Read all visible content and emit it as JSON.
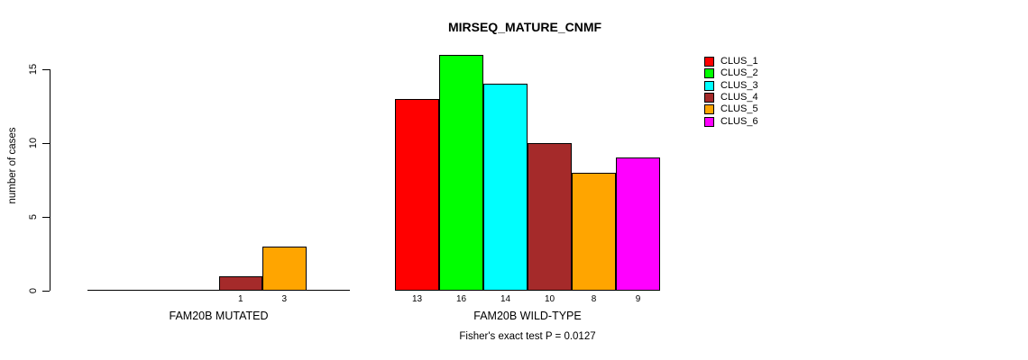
{
  "chart_data": {
    "type": "bar",
    "title": "MIRSEQ_MATURE_CNMF",
    "ylabel": "number of cases",
    "xlabel": "",
    "footer": "Fisher's exact test P = 0.0127",
    "yticks": [
      0,
      5,
      10,
      15
    ],
    "ylim": [
      0,
      16
    ],
    "grid": false,
    "legend_position": "right",
    "legend": [
      "CLUS_1",
      "CLUS_2",
      "CLUS_3",
      "CLUS_4",
      "CLUS_5",
      "CLUS_6"
    ],
    "colors": [
      "#FF0000",
      "#00FF00",
      "#00FFFF",
      "#A52A2A",
      "#FFA500",
      "#FF00FF"
    ],
    "categories": [
      "FAM20B MUTATED",
      "FAM20B WILD-TYPE"
    ],
    "series": [
      {
        "name": "CLUS_1",
        "values": [
          0,
          13
        ]
      },
      {
        "name": "CLUS_2",
        "values": [
          0,
          16
        ]
      },
      {
        "name": "CLUS_3",
        "values": [
          0,
          14
        ]
      },
      {
        "name": "CLUS_4",
        "values": [
          1,
          10
        ]
      },
      {
        "name": "CLUS_5",
        "values": [
          3,
          8
        ]
      },
      {
        "name": "CLUS_6",
        "values": [
          0,
          9
        ]
      }
    ],
    "groups": [
      {
        "label": "FAM20B MUTATED",
        "values": [
          0,
          0,
          0,
          1,
          3,
          0
        ],
        "bar_labels": [
          "",
          "",
          "",
          "1",
          "3",
          ""
        ]
      },
      {
        "label": "FAM20B WILD-TYPE",
        "values": [
          13,
          16,
          14,
          10,
          8,
          9
        ],
        "bar_labels": [
          "13",
          "16",
          "14",
          "10",
          "8",
          "9"
        ]
      }
    ]
  }
}
